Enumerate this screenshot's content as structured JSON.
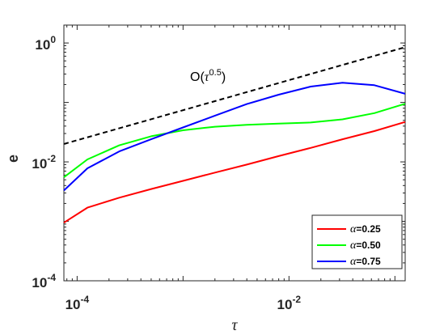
{
  "chart_data": {
    "type": "line",
    "xlabel": "τ",
    "ylabel": "e",
    "xscale": "log",
    "yscale": "log",
    "xlim": [
      7.5e-05,
      0.125
    ],
    "ylim": [
      0.0001,
      2
    ],
    "xticks": [
      {
        "value": 0.0001,
        "base": "10",
        "exp": "-4"
      },
      {
        "value": 0.01,
        "base": "10",
        "exp": "-2"
      }
    ],
    "yticks": [
      {
        "value": 0.0001,
        "base": "10",
        "exp": "-4"
      },
      {
        "value": 0.01,
        "base": "10",
        "exp": "-2"
      },
      {
        "value": 1,
        "base": "10",
        "exp": "0"
      }
    ],
    "legend_position": "bottom-right",
    "series": [
      {
        "name": "α=0.25",
        "symbol": "α",
        "label_rest": "=0.25",
        "color": "#ff0000",
        "x": [
          7.5e-05,
          0.000125,
          0.00025,
          0.0005,
          0.001,
          0.002,
          0.004,
          0.008,
          0.016,
          0.032,
          0.064,
          0.125
        ],
        "y": [
          0.00095,
          0.0017,
          0.0025,
          0.0035,
          0.0048,
          0.0066,
          0.009,
          0.0125,
          0.0172,
          0.024,
          0.033,
          0.047
        ]
      },
      {
        "name": "α=0.50",
        "symbol": "α",
        "label_rest": "=0.50",
        "color": "#00ff00",
        "x": [
          7.5e-05,
          0.000125,
          0.00025,
          0.0005,
          0.001,
          0.002,
          0.004,
          0.008,
          0.016,
          0.032,
          0.064,
          0.125
        ],
        "y": [
          0.0055,
          0.011,
          0.019,
          0.027,
          0.034,
          0.039,
          0.042,
          0.044,
          0.046,
          0.052,
          0.066,
          0.095
        ]
      },
      {
        "name": "α=0.75",
        "symbol": "α",
        "label_rest": "=0.75",
        "color": "#0000ff",
        "x": [
          7.5e-05,
          0.000125,
          0.00025,
          0.0005,
          0.001,
          0.002,
          0.004,
          0.008,
          0.016,
          0.032,
          0.064,
          0.125
        ],
        "y": [
          0.0033,
          0.0078,
          0.015,
          0.024,
          0.038,
          0.06,
          0.094,
          0.135,
          0.185,
          0.215,
          0.195,
          0.14
        ]
      }
    ],
    "reference_line": {
      "text_main": "O(",
      "text_sym": "τ",
      "text_sup": "0.5",
      "text_close": ")",
      "color": "#000000",
      "style": "dashed",
      "x": [
        7.5e-05,
        0.125
      ],
      "y": [
        0.02,
        0.85
      ]
    }
  }
}
